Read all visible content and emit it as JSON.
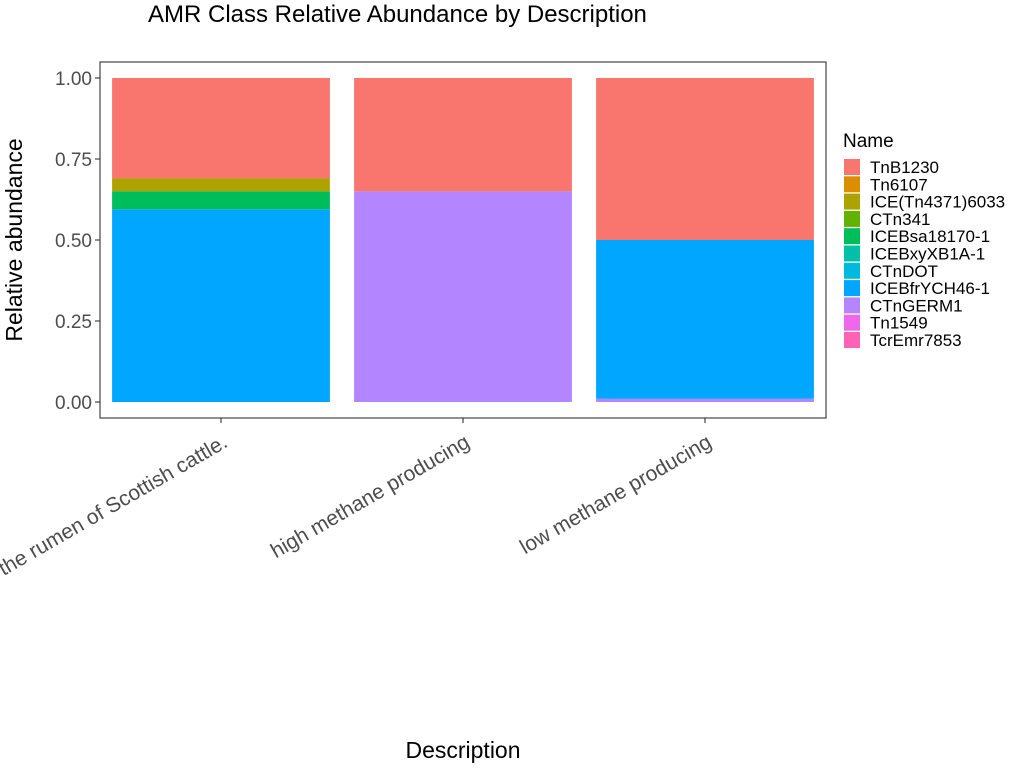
{
  "chart_data": {
    "type": "bar",
    "stacked": true,
    "title": "AMR Class Relative Abundance by Description",
    "xlabel": "Description",
    "ylabel": "Relative abundance",
    "ylim": [
      0,
      1
    ],
    "yticks": [
      "0.00",
      "0.25",
      "0.50",
      "0.75",
      "1.00"
    ],
    "ytick_values": [
      0,
      0.25,
      0.5,
      0.75,
      1.0
    ],
    "grid": false,
    "legend_title": "Name",
    "legend_position": "right",
    "categories": [
      "of the rumen of Scottish cattle.",
      "high methane producing",
      "low methane producing"
    ],
    "series": [
      {
        "name": "TnB1230",
        "color": "#F8766D",
        "values": [
          0.31,
          0.35,
          0.5
        ]
      },
      {
        "name": "Tn6107",
        "color": "#DB8E00",
        "values": [
          0,
          0,
          0
        ]
      },
      {
        "name": "ICE(Tn4371)6033",
        "color": "#AEA200",
        "values": [
          0.04,
          0,
          0
        ]
      },
      {
        "name": "CTn341",
        "color": "#64B200",
        "values": [
          0,
          0,
          0
        ]
      },
      {
        "name": "ICEBsa18170-1",
        "color": "#00BD5C",
        "values": [
          0.055,
          0,
          0
        ]
      },
      {
        "name": "ICEBxyXB1A-1",
        "color": "#00C1A7",
        "values": [
          0,
          0,
          0
        ]
      },
      {
        "name": "CTnDOT",
        "color": "#00BADE",
        "values": [
          0,
          0,
          0
        ]
      },
      {
        "name": "ICEBfrYCH46-1",
        "color": "#00A6FF",
        "values": [
          0.595,
          0,
          0.49
        ]
      },
      {
        "name": "CTnGERM1",
        "color": "#B385FF",
        "values": [
          0,
          0.65,
          0.01
        ]
      },
      {
        "name": "Tn1549",
        "color": "#EF67EB",
        "values": [
          0,
          0,
          0
        ]
      },
      {
        "name": "TcrEmr7853",
        "color": "#FF63B6",
        "values": [
          0,
          0,
          0
        ]
      }
    ]
  }
}
